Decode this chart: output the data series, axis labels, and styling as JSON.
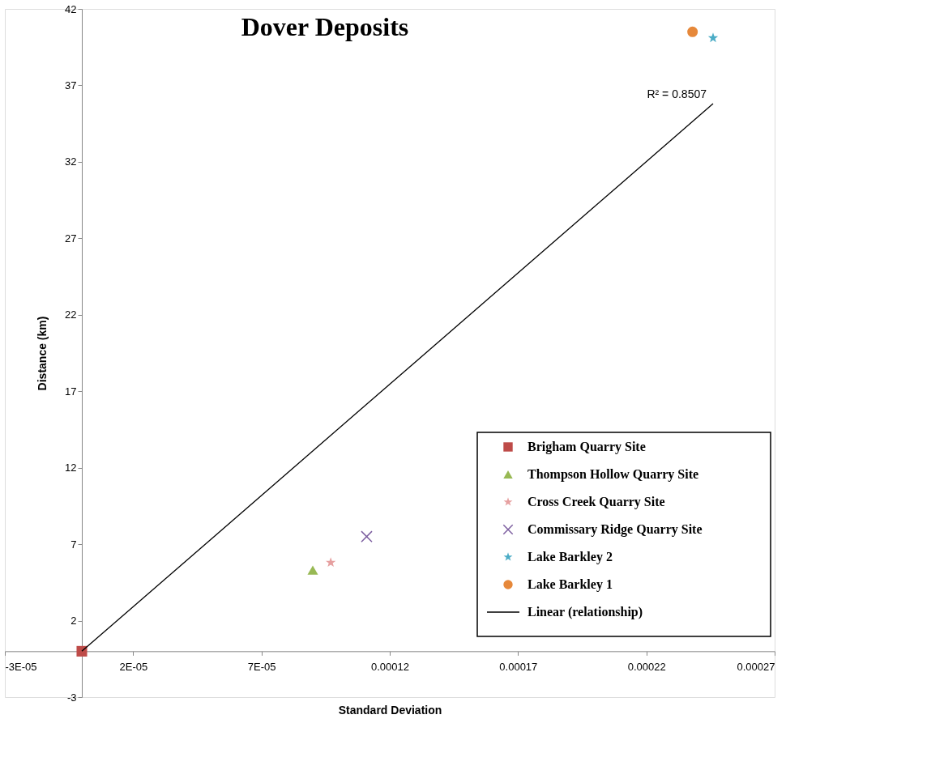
{
  "chart_data": {
    "type": "scatter",
    "title": "Dover Deposits",
    "xlabel": "Standard Deviation",
    "ylabel": "Distance (km)",
    "xlim": [
      -3e-05,
      0.00027
    ],
    "ylim": [
      -3,
      42
    ],
    "xticks": [
      {
        "value": -3e-05,
        "label": "-3E-05"
      },
      {
        "value": 2e-05,
        "label": "2E-05"
      },
      {
        "value": 7e-05,
        "label": "7E-05"
      },
      {
        "value": 0.00012,
        "label": "0.00012"
      },
      {
        "value": 0.00017,
        "label": "0.00017"
      },
      {
        "value": 0.00022,
        "label": "0.00022"
      },
      {
        "value": 0.00027,
        "label": "0.00027"
      }
    ],
    "yticks": [
      -3,
      2,
      7,
      12,
      17,
      22,
      27,
      32,
      37,
      42
    ],
    "grid": false,
    "legend": "bottom right",
    "series": [
      {
        "name": "Brigham Quarry Site",
        "color": "#be4b48",
        "marker": "square",
        "x": [
          0.0
        ],
        "values": [
          0.0
        ]
      },
      {
        "name": "Thompson Hollow Quarry Site",
        "color": "#98b954",
        "marker": "triangle",
        "x": [
          9e-05
        ],
        "values": [
          5.3
        ]
      },
      {
        "name": "Cross Creek Quarry Site",
        "color": "#e6a0a0",
        "marker": "star",
        "x": [
          9.7e-05
        ],
        "values": [
          5.8
        ]
      },
      {
        "name": "Commissary Ridge Quarry Site",
        "color": "#7d5fa0",
        "marker": "cross",
        "x": [
          0.000111
        ],
        "values": [
          7.5
        ]
      },
      {
        "name": "Lake Barkley 2",
        "color": "#4bacc6",
        "marker": "star",
        "x": [
          0.000246
        ],
        "values": [
          40.1
        ]
      },
      {
        "name": "Lake Barkley 1",
        "color": "#e6883a",
        "marker": "circle",
        "x": [
          0.000238
        ],
        "values": [
          40.5
        ]
      },
      {
        "name": "Linear (relationship)",
        "type": "line",
        "color": "#000000",
        "line_style": "solid",
        "x": [
          0.0,
          0.000246
        ],
        "values": [
          0.0,
          35.8
        ]
      }
    ],
    "annotations": [
      {
        "text": "R² = 0.8507",
        "x": 0.000246,
        "y": 35.8
      }
    ]
  }
}
